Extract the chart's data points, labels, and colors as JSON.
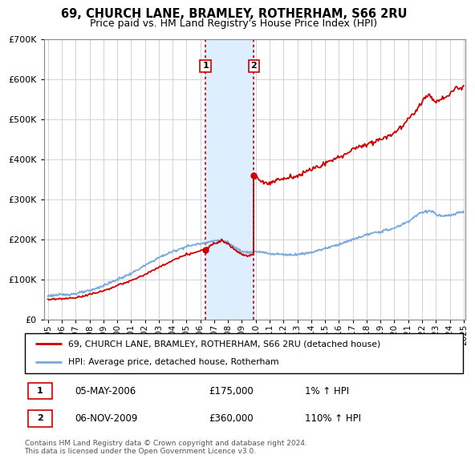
{
  "title": "69, CHURCH LANE, BRAMLEY, ROTHERHAM, S66 2RU",
  "subtitle": "Price paid vs. HM Land Registry's House Price Index (HPI)",
  "ylim": [
    0,
    700000
  ],
  "yticks": [
    0,
    100000,
    200000,
    300000,
    400000,
    500000,
    600000,
    700000
  ],
  "ytick_labels": [
    "£0",
    "£100K",
    "£200K",
    "£300K",
    "£400K",
    "£500K",
    "£600K",
    "£700K"
  ],
  "x_start_year": 1995,
  "x_end_year": 2025,
  "xtick_years": [
    1995,
    1996,
    1997,
    1998,
    1999,
    2000,
    2001,
    2002,
    2003,
    2004,
    2005,
    2006,
    2007,
    2008,
    2009,
    2010,
    2011,
    2012,
    2013,
    2014,
    2015,
    2016,
    2017,
    2018,
    2019,
    2020,
    2021,
    2022,
    2023,
    2024,
    2025
  ],
  "t1_year": 2006.37,
  "t1_price": 175000,
  "t2_year": 2009.85,
  "t2_price": 360000,
  "hpi_color": "#7aaadd",
  "sale_color": "#cc0000",
  "grid_color": "#cccccc",
  "shade_color": "#ddeeff",
  "legend_label1": "69, CHURCH LANE, BRAMLEY, ROTHERHAM, S66 2RU (detached house)",
  "legend_label2": "HPI: Average price, detached house, Rotherham",
  "footer": "Contains HM Land Registry data © Crown copyright and database right 2024.\nThis data is licensed under the Open Government Licence v3.0.",
  "table_row1": [
    "1",
    "05-MAY-2006",
    "£175,000",
    "1% ↑ HPI"
  ],
  "table_row2": [
    "2",
    "06-NOV-2009",
    "£360,000",
    "110% ↑ HPI"
  ]
}
